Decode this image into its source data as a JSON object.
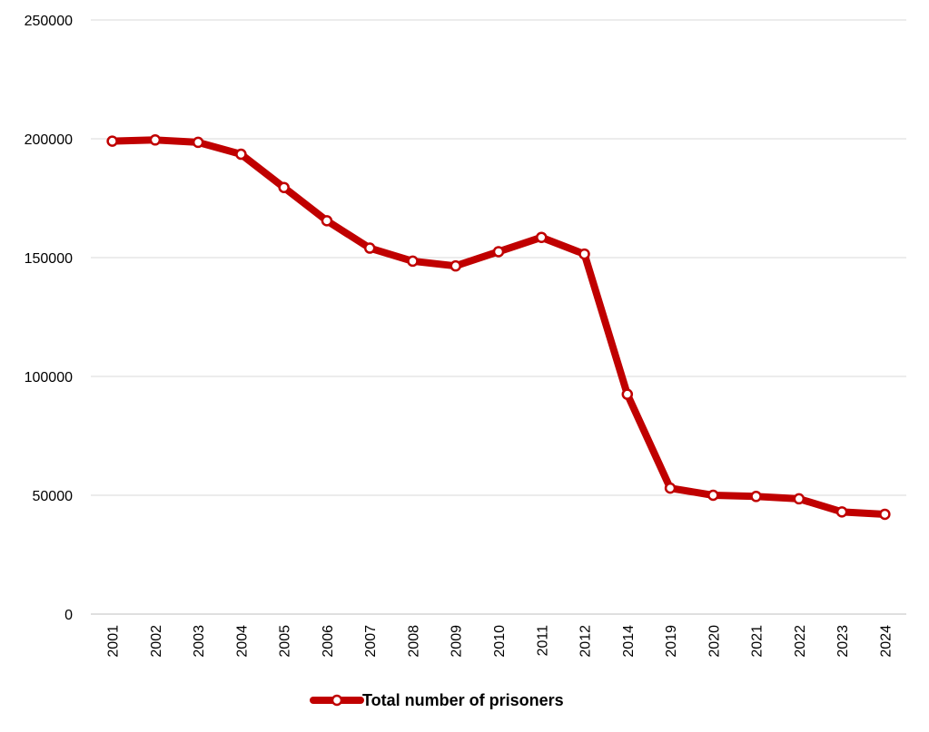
{
  "chart_data": {
    "type": "line",
    "title": "",
    "xlabel": "",
    "ylabel": "",
    "categories": [
      "2001",
      "2002",
      "2003",
      "2004",
      "2005",
      "2006",
      "2007",
      "2008",
      "2009",
      "2010",
      "2011",
      "2012",
      "2014",
      "2019",
      "2020",
      "2021",
      "2022",
      "2023",
      "2024"
    ],
    "series": [
      {
        "name": "Total number of prisoners",
        "values": [
          199000,
          199500,
          198500,
          193500,
          179500,
          165500,
          154000,
          148500,
          146500,
          152500,
          158500,
          151500,
          92500,
          53000,
          50000,
          49500,
          48500,
          43000,
          42000
        ],
        "color": "#c00000"
      }
    ],
    "ylim": [
      0,
      250000
    ],
    "yticks": [
      "0",
      "50000",
      "100000",
      "150000",
      "200000",
      "250000"
    ],
    "grid": true,
    "legend_position": "bottom"
  }
}
